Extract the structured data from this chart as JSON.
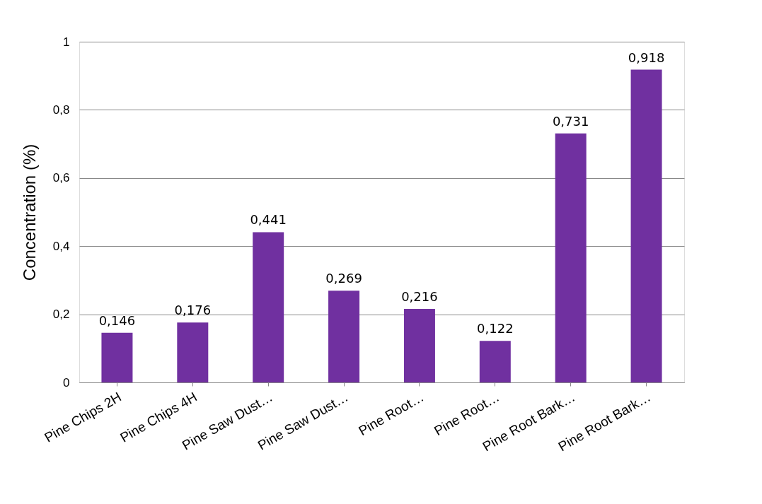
{
  "chart_data": {
    "type": "bar",
    "ylabel": "Concentration (%)",
    "categories": [
      "Pine Chips 2H",
      "Pine Chips 4H",
      "Pine Saw Dust…",
      "Pine Saw Dust…",
      "Pine Root…",
      "Pine Root…",
      "Pine Root Bark…",
      "Pine Root Bark…"
    ],
    "values": [
      0.146,
      0.176,
      0.441,
      0.269,
      0.216,
      0.122,
      0.731,
      0.918
    ],
    "value_labels": [
      "0,146",
      "0,176",
      "0,441",
      "0,269",
      "0,216",
      "0,122",
      "0,731",
      "0,918"
    ],
    "color": "#7030a0",
    "ylim": [
      0,
      1
    ],
    "yticks": [
      0,
      {
        "value": 0.2,
        "label": "0,2"
      },
      {
        "value": 0.4,
        "label": "0,4"
      },
      {
        "value": 0.6,
        "label": "0,6"
      },
      {
        "value": 0.8,
        "label": "0,8"
      },
      1
    ],
    "grid": "y"
  }
}
